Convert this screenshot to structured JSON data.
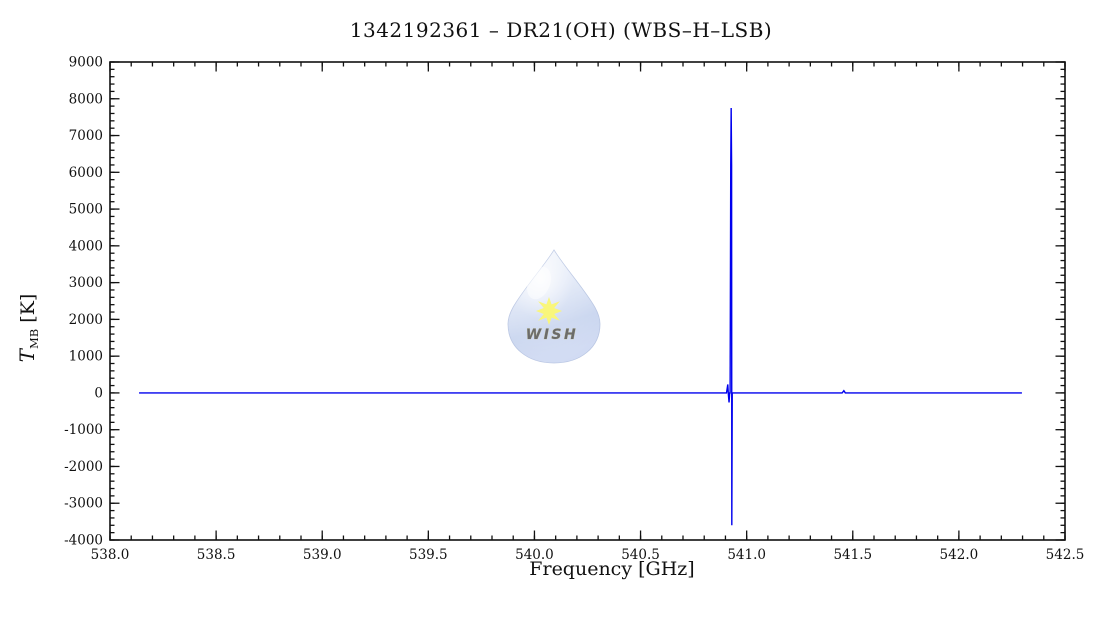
{
  "watermark": {
    "label": "WISH",
    "drop_color_light": "#e9effa",
    "drop_color_mid": "#c3d2ee",
    "drop_color_deep": "#9db3e0",
    "star_color": "#f6f22c",
    "text_color": "#f0ec3e"
  },
  "chart_data": {
    "type": "line",
    "title": "1342192361 – DR21(OH) (WBS–H–LSB)",
    "xlabel": "Frequency [GHz]",
    "ylabel": "T_MB [K]",
    "ylabel_parts": {
      "symbol": "T",
      "subscript": "MB",
      "unit": " [K]"
    },
    "xlim": [
      538.0,
      542.5
    ],
    "ylim": [
      -4000,
      9000
    ],
    "x_major_values": [
      538.0,
      538.5,
      539.0,
      539.5,
      540.0,
      540.5,
      541.0,
      541.5,
      542.0,
      542.5
    ],
    "x_major_labels": [
      "538.0",
      "538.5",
      "539.0",
      "539.5",
      "540.0",
      "540.5",
      "541.0",
      "541.5",
      "542.0",
      "542.5"
    ],
    "x_minor_step": 0.1,
    "y_major_values": [
      -4000,
      -3000,
      -2000,
      -1000,
      0,
      1000,
      2000,
      3000,
      4000,
      5000,
      6000,
      7000,
      8000,
      9000
    ],
    "y_major_labels": [
      "-4000",
      "-3000",
      "-2000",
      "-1000",
      "0",
      "1000",
      "2000",
      "3000",
      "4000",
      "5000",
      "6000",
      "7000",
      "8000",
      "9000"
    ],
    "y_minor_step": 200,
    "grid": false,
    "line_color": "#0000EE",
    "frame_color": "#111111",
    "series": [
      {
        "name": "spectrum",
        "points": [
          [
            538.137,
            0
          ],
          [
            540.905,
            0
          ],
          [
            540.911,
            230
          ],
          [
            540.914,
            -60
          ],
          [
            540.917,
            -260
          ],
          [
            540.92,
            0
          ],
          [
            540.922,
            0
          ],
          [
            540.925,
            6200
          ],
          [
            540.927,
            7750
          ],
          [
            540.929,
            6200
          ],
          [
            540.93,
            -3600
          ],
          [
            540.932,
            0
          ],
          [
            541.45,
            0
          ],
          [
            541.458,
            60
          ],
          [
            541.465,
            0
          ],
          [
            542.297,
            0
          ]
        ]
      }
    ],
    "annotations": {
      "baseline_K": 0,
      "spike_frequency_GHz": 540.93,
      "spike_max_K": 7750,
      "spike_min_K": -3600,
      "data_range_GHz": [
        538.14,
        542.3
      ]
    }
  }
}
